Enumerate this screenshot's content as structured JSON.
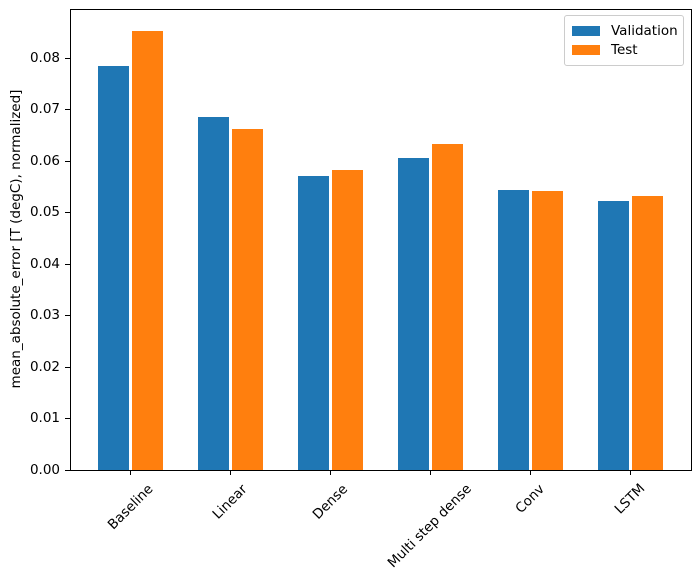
{
  "figure": {
    "background": "#ffffff"
  },
  "chart_data": {
    "type": "bar",
    "title": "",
    "xlabel": "",
    "ylabel": "mean_absolute_error [T (degC), normalized]",
    "categories": [
      "Baseline",
      "Linear",
      "Dense",
      "Multi step dense",
      "Conv",
      "LSTM"
    ],
    "series": [
      {
        "name": "Validation",
        "color": "#1f77b4",
        "values": [
          0.0785,
          0.0685,
          0.0571,
          0.0605,
          0.0544,
          0.0523
        ]
      },
      {
        "name": "Test",
        "color": "#ff7f0e",
        "values": [
          0.0852,
          0.0662,
          0.0582,
          0.0633,
          0.0542,
          0.0532
        ]
      }
    ],
    "ylim": [
      0,
      0.0895
    ],
    "yticks": [
      0,
      0.01,
      0.02,
      0.03,
      0.04,
      0.05,
      0.06,
      0.07,
      0.08
    ],
    "ytick_labels": [
      "0.00",
      "0.01",
      "0.02",
      "0.03",
      "0.04",
      "0.05",
      "0.06",
      "0.07",
      "0.08"
    ],
    "xtick_rotation": 45,
    "grid": false,
    "legend": {
      "position": "upper right",
      "entries": [
        "Validation",
        "Test"
      ]
    },
    "axis_color": "#000000",
    "legend_border_color": "#cccccc"
  }
}
